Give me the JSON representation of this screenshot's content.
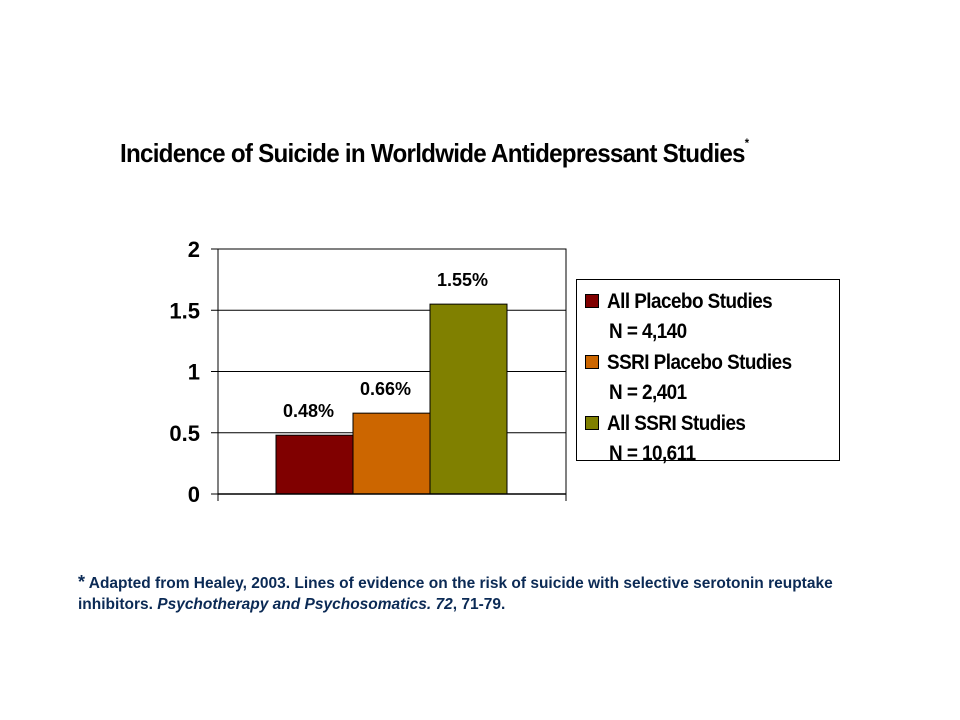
{
  "title": "Incidence of Suicide in Worldwide Antidepressant Studies",
  "title_marker": "*",
  "chart_data": {
    "type": "bar",
    "categories": [
      "All Placebo Studies",
      "SSRI Placebo Studies",
      "All SSRI Studies"
    ],
    "values": [
      0.48,
      0.66,
      1.55
    ],
    "data_labels": [
      "0.48%",
      "0.66%",
      "1.55%"
    ],
    "colors": [
      "#800000",
      "#cc6600",
      "#808000"
    ],
    "ylim": [
      0,
      2
    ],
    "yticks": [
      "0",
      "0.5",
      "1",
      "1.5",
      "2"
    ],
    "grid": true,
    "legend_position": "right"
  },
  "legend": [
    {
      "label": "All Placebo Studies",
      "n": "N = 4,140",
      "color": "#800000"
    },
    {
      "label": "SSRI Placebo Studies",
      "n": "N = 2,401",
      "color": "#cc6600"
    },
    {
      "label": "All SSRI Studies",
      "n": "N = 10,611",
      "color": "#808000"
    }
  ],
  "footnote": {
    "marker": "*",
    "text_1": "Adapted from Healey, 2003. Lines of evidence on the risk of suicide with selective serotonin reuptake inhibitors.",
    "journal": "Psychotherapy and Psychosomatics. 72",
    "text_2": ", 71-79."
  }
}
